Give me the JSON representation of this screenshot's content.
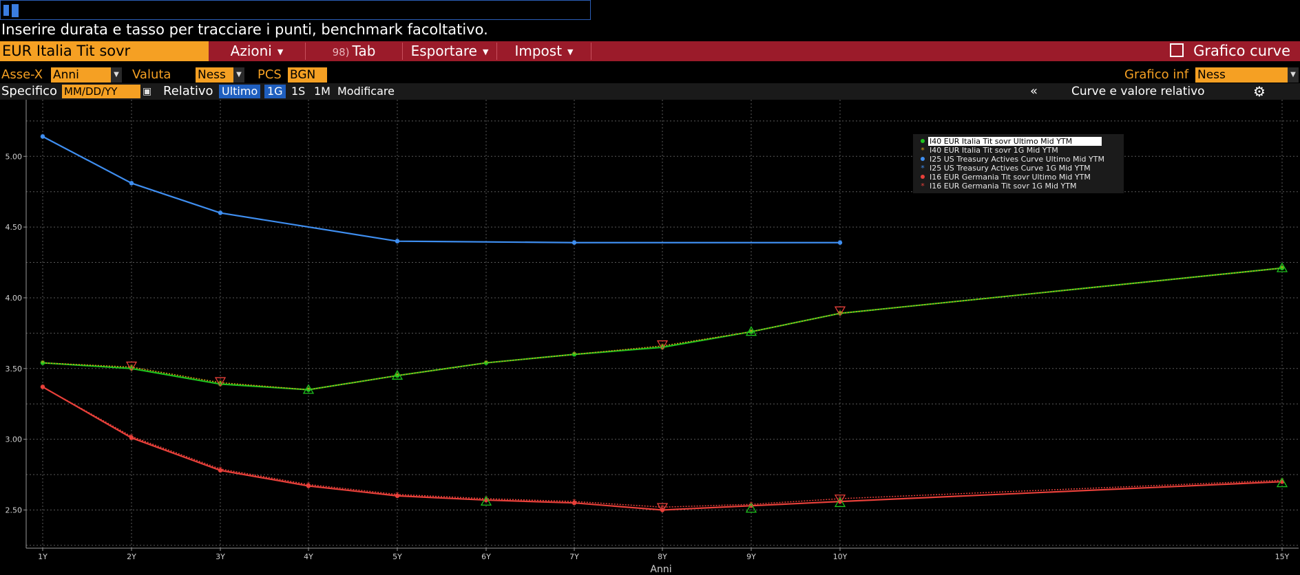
{
  "top": {
    "hint": "Inserire durata e tasso per tracciare i punti, benchmark facoltativo."
  },
  "menubar": {
    "source": "EUR Italia Tit sovr",
    "actions": "Azioni",
    "tab_num": "98)",
    "tab": "Tab",
    "export": "Esportare",
    "settings": "Impost",
    "chart_title": "Grafico curve"
  },
  "options": {
    "xaxis_label": "Asse-X",
    "xaxis_value": "Anni",
    "currency_label": "Valuta",
    "currency_value": "Ness",
    "pcs_label": "PCS",
    "pcs_value": "BGN",
    "lower_chart_label": "Grafico inf",
    "lower_chart_value": "Ness"
  },
  "dates": {
    "specific_label": "Specifico",
    "date_placeholder": "MM/DD/YY",
    "relative_label": "Relativo",
    "buttons": [
      "Ultimo",
      "1G",
      "1S",
      "1M"
    ],
    "modify": "Modificare",
    "collapse": "«",
    "panel_title": "Curve e valore relativo"
  },
  "chart_data": {
    "type": "line",
    "xlabel": "Anni",
    "ylabel": "",
    "ylim": [
      2.23,
      5.4
    ],
    "yticks": [
      2.5,
      3.0,
      3.5,
      4.0,
      4.5,
      5.0
    ],
    "x_categories": [
      "1Y",
      "2Y",
      "3Y",
      "4Y",
      "5Y",
      "6Y",
      "7Y",
      "8Y",
      "9Y",
      "10Y",
      "15Y"
    ],
    "grid": true,
    "legend_position": "top-right",
    "series": [
      {
        "name": "I40 EUR Italia Tit sovr Ultimo Mid YTM",
        "color": "#1ec31e",
        "marker": "dot",
        "x": [
          1,
          2,
          3,
          4,
          5,
          6,
          7,
          8,
          9,
          10,
          15
        ],
        "y": [
          3.54,
          3.5,
          3.39,
          3.35,
          3.45,
          3.54,
          3.6,
          3.65,
          3.76,
          3.89,
          4.21
        ]
      },
      {
        "name": "I40 EUR Italia Tit sovr 1G Mid YTM",
        "color": "#d4a017",
        "marker": "star",
        "x": [
          1,
          2,
          3,
          4,
          5,
          6,
          7,
          8,
          9,
          10,
          15
        ],
        "y": [
          3.54,
          3.51,
          3.4,
          3.35,
          3.45,
          3.54,
          3.6,
          3.66,
          3.76,
          3.89,
          4.21
        ]
      },
      {
        "name": "I25 US Treasury Actives Curve Ultimo Mid YTM",
        "color": "#3f8ef0",
        "marker": "dot",
        "x": [
          1,
          2,
          3,
          5,
          7,
          10
        ],
        "y": [
          5.14,
          4.81,
          4.6,
          4.4,
          4.39,
          4.39
        ]
      },
      {
        "name": "I25 US Treasury Actives Curve 1G Mid YTM",
        "color": "#3f8ef0",
        "marker": "star",
        "x": [
          1,
          2,
          3,
          5,
          7,
          10
        ],
        "y": [
          5.14,
          4.81,
          4.6,
          4.4,
          4.39,
          4.39
        ]
      },
      {
        "name": "I16 EUR Germania Tit sovr Ultimo Mid YTM",
        "color": "#e8403a",
        "marker": "dot",
        "x": [
          1,
          2,
          3,
          4,
          5,
          6,
          7,
          8,
          9,
          10,
          15
        ],
        "y": [
          3.37,
          3.01,
          2.78,
          2.67,
          2.6,
          2.57,
          2.55,
          2.5,
          2.53,
          2.56,
          2.7
        ]
      },
      {
        "name": "I16 EUR Germania Tit sovr 1G Mid YTM",
        "color": "#e8403a",
        "marker": "star",
        "x": [
          1,
          2,
          3,
          4,
          5,
          6,
          7,
          8,
          9,
          10,
          15
        ],
        "y": [
          3.37,
          3.02,
          2.79,
          2.68,
          2.61,
          2.58,
          2.56,
          2.52,
          2.54,
          2.58,
          2.71
        ]
      }
    ],
    "benchmark_markers": [
      {
        "color": "#1ec31e",
        "direction": "up",
        "x": 4,
        "y": 3.35
      },
      {
        "color": "#1ec31e",
        "direction": "up",
        "x": 5,
        "y": 3.45
      },
      {
        "color": "#1ec31e",
        "direction": "up",
        "x": 9,
        "y": 3.76
      },
      {
        "color": "#1ec31e",
        "direction": "up",
        "x": 15,
        "y": 4.21
      },
      {
        "color": "#e8403a",
        "direction": "down",
        "x": 2,
        "y": 3.52
      },
      {
        "color": "#e8403a",
        "direction": "down",
        "x": 3,
        "y": 3.41
      },
      {
        "color": "#e8403a",
        "direction": "down",
        "x": 8,
        "y": 3.67
      },
      {
        "color": "#e8403a",
        "direction": "down",
        "x": 10,
        "y": 3.91
      },
      {
        "color": "#1ec31e",
        "direction": "up",
        "x": 6,
        "y": 2.56
      },
      {
        "color": "#1ec31e",
        "direction": "up",
        "x": 9,
        "y": 2.51
      },
      {
        "color": "#1ec31e",
        "direction": "up",
        "x": 10,
        "y": 2.55
      },
      {
        "color": "#1ec31e",
        "direction": "up",
        "x": 15,
        "y": 2.69
      },
      {
        "color": "#e8403a",
        "direction": "down",
        "x": 8,
        "y": 2.52
      },
      {
        "color": "#e8403a",
        "direction": "down",
        "x": 10,
        "y": 2.58
      }
    ]
  }
}
